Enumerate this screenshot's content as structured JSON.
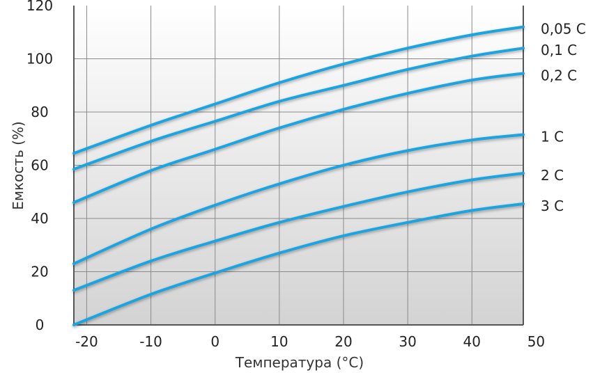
{
  "chart_data": {
    "type": "line",
    "xlabel": "Температура (°C)",
    "ylabel": "Емкость (%)",
    "xlim": [
      -22,
      48
    ],
    "ylim": [
      0,
      120
    ],
    "x_ticks": [
      -20,
      -10,
      0,
      10,
      20,
      30,
      40,
      50
    ],
    "x_tick_labels": [
      "-20",
      "-10",
      "0",
      "10",
      "20",
      "30",
      "40",
      "50"
    ],
    "y_ticks": [
      0,
      20,
      40,
      60,
      80,
      100,
      120
    ],
    "y_tick_labels": [
      "0",
      "20",
      "40",
      "60",
      "80",
      "100",
      "120"
    ],
    "grid": true,
    "line_color": "#1aa3e0",
    "background_gradient": [
      "#ffffff",
      "#d3d3d3"
    ],
    "x": [
      -22,
      -10,
      0,
      10,
      20,
      30,
      40,
      48
    ],
    "series": [
      {
        "name": "0,05 C",
        "values": [
          64.5,
          75,
          83,
          91,
          98,
          104,
          109,
          112
        ]
      },
      {
        "name": "0,1 C",
        "values": [
          58.5,
          69,
          76.5,
          84,
          90,
          96,
          101,
          104
        ]
      },
      {
        "name": "0,2 C",
        "values": [
          46,
          58,
          66,
          74,
          81,
          87,
          92,
          94.5
        ]
      },
      {
        "name": "1 C",
        "values": [
          23,
          36,
          45,
          53,
          60,
          65.5,
          69.5,
          71.5
        ]
      },
      {
        "name": "2 C",
        "values": [
          13,
          24,
          31.5,
          38.5,
          44.5,
          50,
          54.5,
          57
        ]
      },
      {
        "name": "3 C",
        "values": [
          0,
          11.5,
          19.5,
          27,
          33.5,
          38.5,
          43,
          45.5
        ]
      }
    ]
  }
}
